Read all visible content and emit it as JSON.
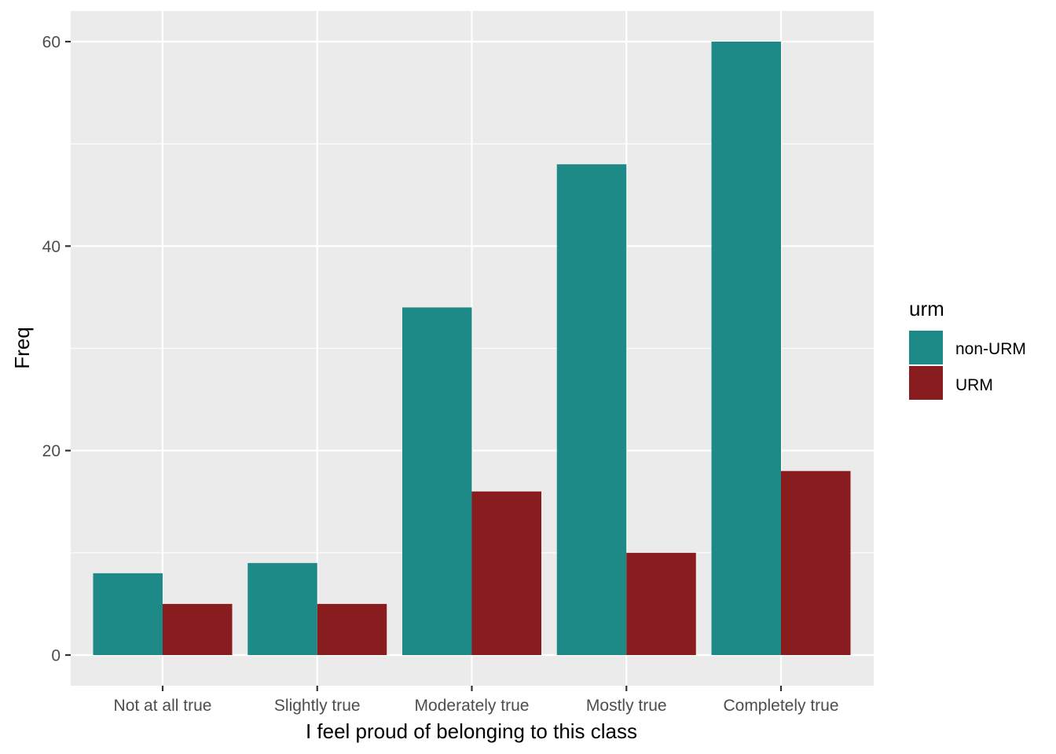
{
  "chart_data": {
    "type": "bar",
    "xlabel": "I feel proud of belonging to this class",
    "ylabel": "Freq",
    "categories": [
      "Not at all true",
      "Slightly true",
      "Moderately true",
      "Mostly true",
      "Completely true"
    ],
    "series": [
      {
        "name": "non-URM",
        "values": [
          8,
          9,
          34,
          48,
          60
        ],
        "color": "#1d8a87"
      },
      {
        "name": "URM",
        "values": [
          5,
          5,
          16,
          10,
          18
        ],
        "color": "#881c1e"
      }
    ],
    "ylim": [
      0,
      60
    ],
    "yticks": [
      0,
      20,
      40,
      60
    ],
    "y_tick_labels": [
      "0",
      "20",
      "40",
      "60"
    ],
    "grid": true,
    "legend": {
      "title": "urm",
      "position": "right"
    },
    "panel_background": "#ebebeb",
    "grid_color": "#ffffff"
  }
}
